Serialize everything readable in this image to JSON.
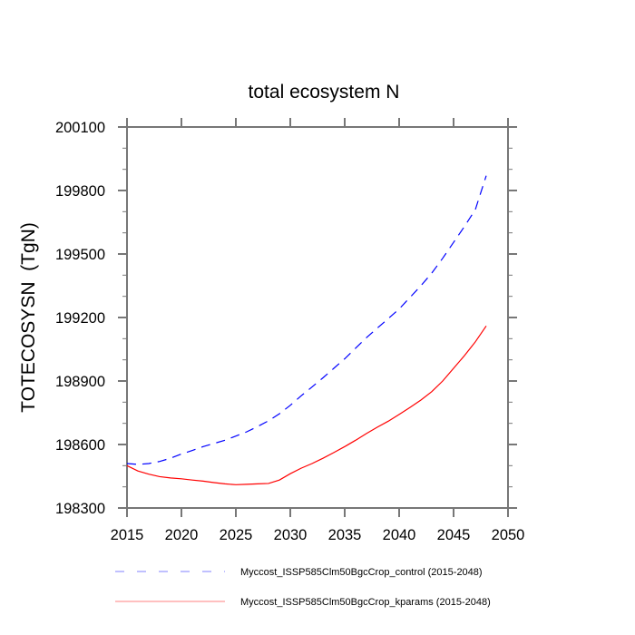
{
  "chart_data": {
    "type": "line",
    "title": "total ecosystem N",
    "xlabel": "",
    "ylabel": "TOTECOSYSN  (TgN)",
    "xlim": [
      2015,
      2050
    ],
    "ylim": [
      198300,
      200100
    ],
    "xticks": [
      2015,
      2020,
      2025,
      2030,
      2035,
      2040,
      2045,
      2050
    ],
    "xtick_labels": [
      "2015",
      "2020",
      "2025",
      "2030",
      "2035",
      "2040",
      "2045",
      "2050"
    ],
    "xminor_step": 5,
    "yticks": [
      198300,
      198600,
      198900,
      199200,
      199500,
      199800,
      200100
    ],
    "ytick_labels": [
      "198300",
      "198600",
      "198900",
      "199200",
      "199500",
      "199800",
      "200100"
    ],
    "yminor_step": 100,
    "grid": false,
    "legend_position": "bottom",
    "series": [
      {
        "name": "Myccost_ISSP585Clm50BgcCrop_control (2015-2048)",
        "color": "#0000ff",
        "legend_color": "#8080ff",
        "style": "dashed",
        "x": [
          2015,
          2016,
          2017,
          2018,
          2019,
          2020,
          2021,
          2022,
          2023,
          2024,
          2025,
          2026,
          2027,
          2028,
          2029,
          2030,
          2031,
          2032,
          2033,
          2034,
          2035,
          2036,
          2037,
          2038,
          2039,
          2040,
          2041,
          2042,
          2043,
          2044,
          2045,
          2046,
          2047,
          2048
        ],
        "values": [
          198510,
          198506,
          198510,
          198520,
          198535,
          198555,
          198572,
          198590,
          198605,
          198620,
          198640,
          198660,
          198685,
          198712,
          198745,
          198785,
          198830,
          198872,
          198915,
          198960,
          199005,
          199055,
          199105,
          199150,
          199195,
          199240,
          199295,
          199350,
          199410,
          199480,
          199555,
          199630,
          199710,
          199870
        ]
      },
      {
        "name": "Myccost_ISSP585Clm50BgcCrop_kparams (2015-2048)",
        "color": "#ff0000",
        "legend_color": "#ff8080",
        "style": "solid",
        "x": [
          2015,
          2016,
          2017,
          2018,
          2019,
          2020,
          2021,
          2022,
          2023,
          2024,
          2025,
          2026,
          2027,
          2028,
          2029,
          2030,
          2031,
          2032,
          2033,
          2034,
          2035,
          2036,
          2037,
          2038,
          2039,
          2040,
          2041,
          2042,
          2043,
          2044,
          2045,
          2046,
          2047,
          2048
        ],
        "values": [
          198500,
          198475,
          198460,
          198448,
          198442,
          198438,
          198432,
          198427,
          198420,
          198414,
          198410,
          198412,
          198414,
          198416,
          198432,
          198462,
          198488,
          198510,
          198535,
          198562,
          198590,
          198620,
          198652,
          198682,
          198710,
          198742,
          198775,
          198810,
          198850,
          198900,
          198960,
          199020,
          199085,
          199160
        ]
      }
    ]
  }
}
